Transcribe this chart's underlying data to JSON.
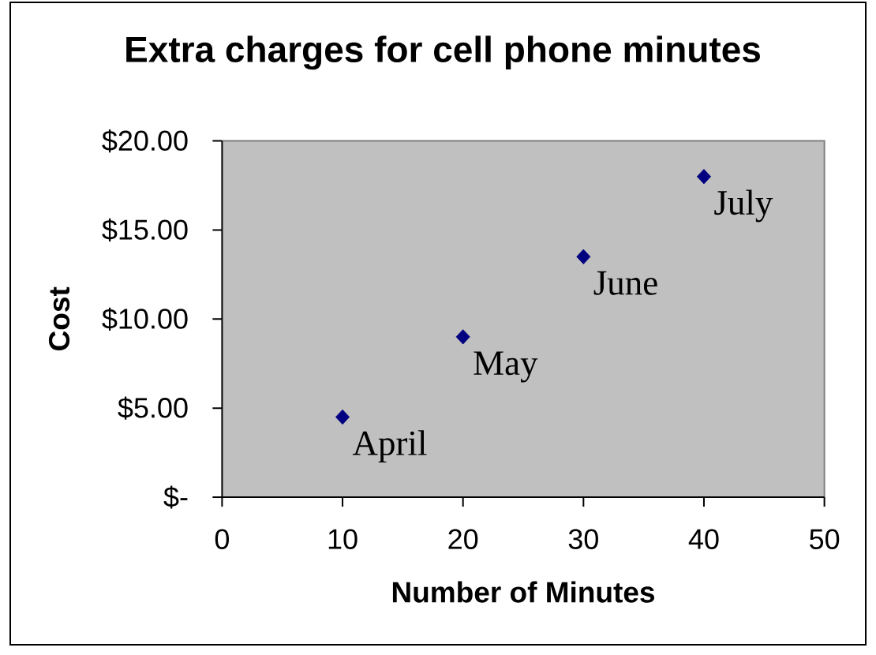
{
  "chart_data": {
    "type": "scatter",
    "title": "Extra charges for cell phone minutes",
    "xlabel": "Number of Minutes",
    "ylabel": "Cost",
    "x": [
      10,
      20,
      30,
      40
    ],
    "values": [
      4.5,
      9,
      13.5,
      18
    ],
    "color": "#000080",
    "marker": "diamond",
    "xlim": [
      0,
      50
    ],
    "xticks": [
      0,
      10,
      20,
      30,
      40,
      50
    ],
    "ylim": [
      0,
      20
    ],
    "yticks": [
      {
        "value": 0,
        "label": "$-"
      },
      {
        "value": 5,
        "label": "$5.00"
      },
      {
        "value": 10,
        "label": "$10.00"
      },
      {
        "value": 15,
        "label": "$15.00"
      },
      {
        "value": 20,
        "label": "$20.00"
      }
    ],
    "annotations": [
      {
        "text": "April",
        "x": 10,
        "y": 4.5
      },
      {
        "text": "May",
        "x": 20,
        "y": 9
      },
      {
        "text": "June",
        "x": 30,
        "y": 13.5
      },
      {
        "text": "July",
        "x": 40,
        "y": 18
      }
    ]
  }
}
